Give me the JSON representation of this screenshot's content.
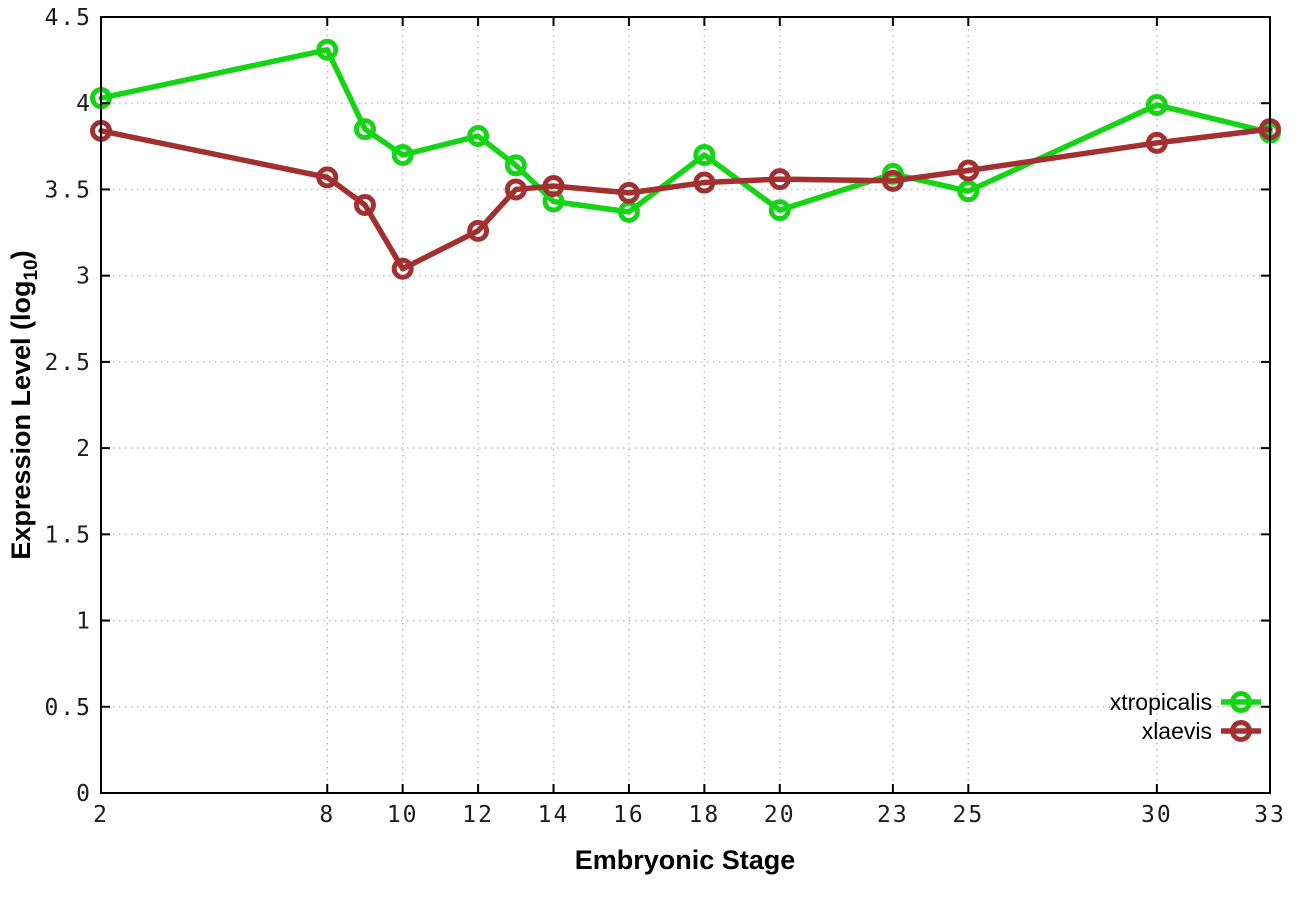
{
  "figure": {
    "background_color": "#ffffff",
    "border_color": "#000000",
    "grid_color": "#b4b4bf"
  },
  "chart_data": {
    "type": "line",
    "title": "",
    "xlabel": "Embryonic Stage",
    "ylabel_prefix": "Expression Level (log",
    "ylabel_sub": "10",
    "ylabel_suffix": ")",
    "xlim": [
      2,
      33
    ],
    "ylim": [
      0,
      4.5
    ],
    "x_ticks": [
      2,
      8,
      10,
      12,
      14,
      16,
      18,
      20,
      23,
      25,
      30,
      33
    ],
    "y_ticks": [
      0,
      0.5,
      1,
      1.5,
      2,
      2.5,
      3,
      3.5,
      4,
      4.5
    ],
    "grid": true,
    "legend_position": "bottom-right",
    "marker": "open-circle",
    "x": [
      2,
      8,
      9,
      10,
      12,
      13,
      14,
      16,
      18,
      20,
      23,
      25,
      30,
      33
    ],
    "series": [
      {
        "name": "xtropicalis",
        "color": "#15d415",
        "values": [
          4.03,
          4.31,
          3.85,
          3.7,
          3.81,
          3.64,
          3.43,
          3.37,
          3.7,
          3.38,
          3.59,
          3.49,
          3.99,
          3.83
        ]
      },
      {
        "name": "xlaevis",
        "color": "#a33030",
        "values": [
          3.84,
          3.57,
          3.41,
          3.04,
          3.26,
          3.5,
          3.52,
          3.48,
          3.54,
          3.56,
          3.55,
          3.61,
          3.77,
          3.85
        ]
      }
    ]
  }
}
